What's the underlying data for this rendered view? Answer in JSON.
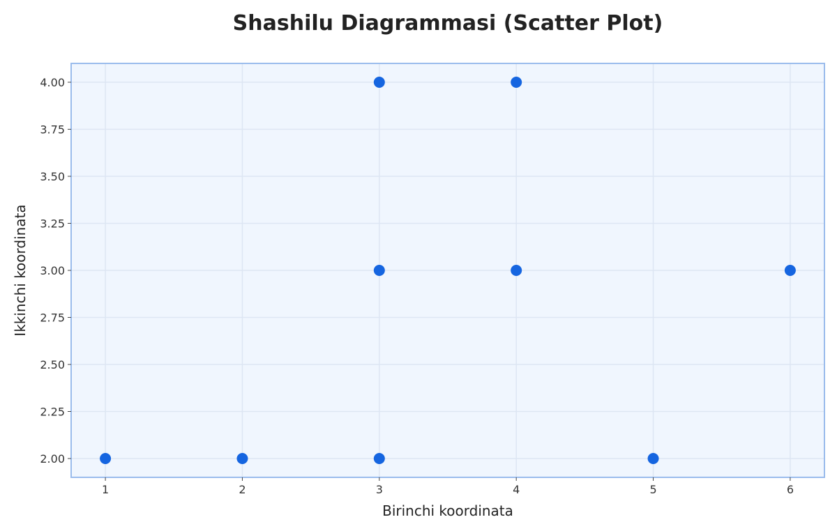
{
  "chart_data": {
    "type": "scatter",
    "title": "Shashilu Diagrammasi (Scatter Plot)",
    "xlabel": "Birinchi koordinata",
    "ylabel": "Ikkinchi koordinata",
    "xlim": [
      0.75,
      6.25
    ],
    "ylim": [
      1.9,
      4.1
    ],
    "x_ticks": [
      1,
      2,
      3,
      4,
      5,
      6
    ],
    "x_tick_labels": [
      "1",
      "2",
      "3",
      "4",
      "5",
      "6"
    ],
    "y_ticks": [
      2.0,
      2.25,
      2.5,
      2.75,
      3.0,
      3.25,
      3.5,
      3.75,
      4.0
    ],
    "y_tick_labels": [
      "2.00",
      "2.25",
      "2.50",
      "2.75",
      "3.00",
      "3.25",
      "3.50",
      "3.75",
      "4.00"
    ],
    "grid": true,
    "points": [
      {
        "x": 1,
        "y": 2
      },
      {
        "x": 2,
        "y": 2
      },
      {
        "x": 3,
        "y": 2
      },
      {
        "x": 3,
        "y": 3
      },
      {
        "x": 3,
        "y": 4
      },
      {
        "x": 4,
        "y": 3
      },
      {
        "x": 4,
        "y": 4
      },
      {
        "x": 5,
        "y": 2
      },
      {
        "x": 6,
        "y": 3
      }
    ],
    "colors": {
      "marker": "#1565e0",
      "plot_background": "#f0f6fe",
      "plot_border": "#9abcec",
      "grid": "#dde6f3"
    }
  }
}
